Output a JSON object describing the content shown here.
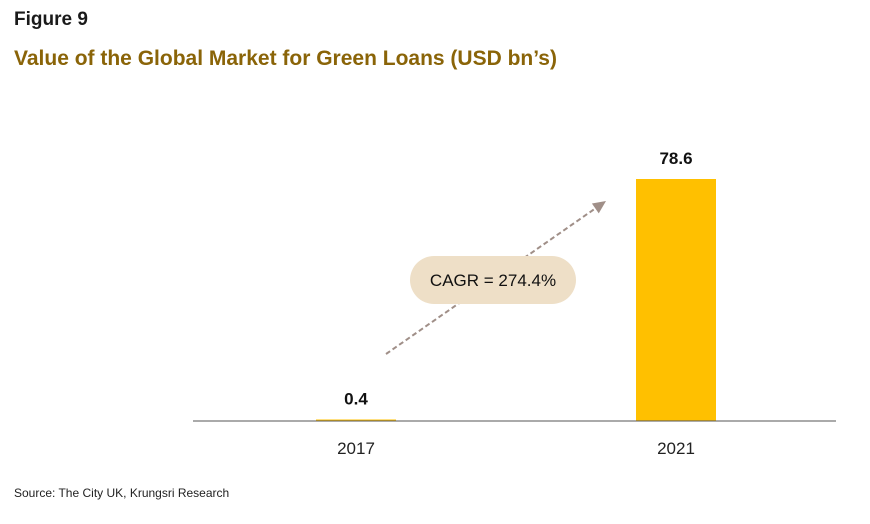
{
  "header": {
    "figure_label": "Figure 9",
    "title": "Value of the Global Market for Green Loans (USD bn’s)"
  },
  "footer": {
    "source": "Source: The City UK, Krungsri Research"
  },
  "colors": {
    "bar": "#FFC000",
    "title": "#8a6408",
    "axis": "#555555",
    "arrow": "#a08f88",
    "annotation_fill": "#eedfc7"
  },
  "chart_data": {
    "type": "bar",
    "categories": [
      "2017",
      "2021"
    ],
    "values": [
      0.4,
      78.6
    ],
    "data_labels": [
      "0.4",
      "78.6"
    ],
    "ylim": [
      0,
      78.6
    ],
    "grid": false,
    "annotations": [
      {
        "text": "CAGR = 274.4%",
        "kind": "growth-arrow"
      }
    ]
  }
}
